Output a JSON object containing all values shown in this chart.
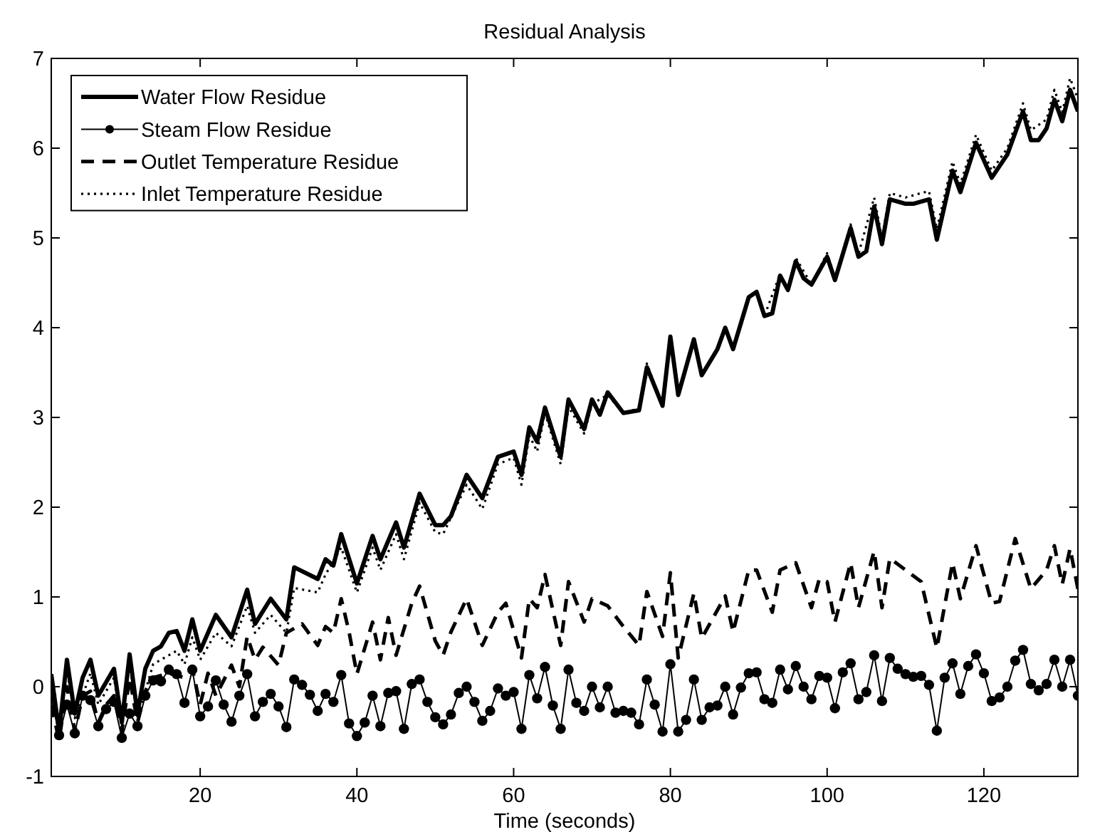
{
  "chart_data": {
    "type": "line",
    "title": "Residual Analysis",
    "xlabel": "Time (seconds)",
    "xlim": [
      1,
      132
    ],
    "xticks": [
      20,
      40,
      60,
      80,
      100,
      120
    ],
    "ylim": [
      -1,
      7
    ],
    "yticks": [
      -1,
      0,
      1,
      2,
      3,
      4,
      5,
      6,
      7
    ],
    "grid": false,
    "legend": "top left",
    "series": [
      {
        "name": "Water Flow Residue",
        "color": "#000000",
        "line_style": "solid",
        "marker": "none",
        "x": [
          1,
          2,
          3,
          4,
          5,
          6,
          7,
          8,
          9,
          10,
          11,
          12,
          13,
          14,
          15,
          16,
          17,
          18,
          19,
          20,
          22,
          24,
          26,
          27,
          29,
          31,
          32,
          35,
          36,
          37,
          38,
          40,
          42,
          43,
          45,
          46,
          48,
          50,
          51,
          52,
          54,
          56,
          58,
          60,
          61,
          62,
          63,
          64,
          66,
          67,
          69,
          70,
          71,
          72,
          74,
          76,
          77,
          79,
          80,
          81,
          83,
          84,
          86,
          87,
          88,
          90,
          91,
          92,
          93,
          94,
          95,
          96,
          97,
          98,
          100,
          101,
          103,
          104,
          105,
          106,
          107,
          108,
          110,
          111,
          113,
          114,
          116,
          117,
          119,
          121,
          122,
          123,
          125,
          126,
          127,
          128,
          129,
          130,
          131,
          132
        ],
        "values": [
          0.14,
          -0.5,
          0.3,
          -0.3,
          0.1,
          0.3,
          -0.1,
          0.05,
          0.2,
          -0.4,
          0.36,
          -0.3,
          0.2,
          0.4,
          0.45,
          0.6,
          0.62,
          0.4,
          0.75,
          0.4,
          0.8,
          0.55,
          1.08,
          0.7,
          0.98,
          0.75,
          1.33,
          1.2,
          1.42,
          1.35,
          1.7,
          1.15,
          1.68,
          1.42,
          1.83,
          1.55,
          2.15,
          1.8,
          1.8,
          1.9,
          2.36,
          2.1,
          2.56,
          2.62,
          2.36,
          2.89,
          2.73,
          3.11,
          2.56,
          3.2,
          2.87,
          3.2,
          3.03,
          3.28,
          3.05,
          3.08,
          3.56,
          3.13,
          3.9,
          3.25,
          3.87,
          3.47,
          3.76,
          4.0,
          3.76,
          4.34,
          4.4,
          4.13,
          4.16,
          4.58,
          4.42,
          4.74,
          4.55,
          4.48,
          4.79,
          4.53,
          5.11,
          4.79,
          4.85,
          5.35,
          4.93,
          5.43,
          5.38,
          5.38,
          5.43,
          4.98,
          5.75,
          5.51,
          6.06,
          5.67,
          5.8,
          5.93,
          6.41,
          6.09,
          6.09,
          6.22,
          6.54,
          6.3,
          6.65,
          6.41
        ]
      },
      {
        "name": "Steam Flow Residue",
        "color": "#000000",
        "line_style": "solid",
        "marker": "circle",
        "x": [
          1,
          2,
          3,
          4,
          5,
          6,
          7,
          8,
          9,
          10,
          11,
          12,
          13,
          14,
          15,
          16,
          17,
          18,
          19,
          20,
          21,
          22,
          23,
          24,
          25,
          26,
          27,
          28,
          29,
          30,
          31,
          32,
          33,
          34,
          35,
          36,
          37,
          38,
          39,
          40,
          41,
          42,
          43,
          44,
          45,
          46,
          47,
          48,
          49,
          50,
          51,
          52,
          53,
          54,
          55,
          56,
          57,
          58,
          59,
          60,
          61,
          62,
          63,
          64,
          65,
          66,
          67,
          68,
          69,
          70,
          71,
          72,
          73,
          74,
          75,
          76,
          77,
          78,
          79,
          80,
          81,
          82,
          83,
          84,
          85,
          86,
          87,
          88,
          89,
          90,
          91,
          92,
          93,
          94,
          95,
          96,
          97,
          98,
          99,
          100,
          101,
          102,
          103,
          104,
          105,
          106,
          107,
          108,
          109,
          110,
          111,
          112,
          113,
          114,
          115,
          116,
          117,
          118,
          119,
          120,
          121,
          122,
          123,
          124,
          125,
          126,
          127,
          128,
          129,
          130,
          131,
          132
        ],
        "values": [
          -0.1,
          -0.54,
          -0.2,
          -0.52,
          -0.1,
          -0.15,
          -0.44,
          -0.25,
          -0.17,
          -0.57,
          -0.3,
          -0.44,
          -0.1,
          0.07,
          0.06,
          0.19,
          0.14,
          -0.18,
          0.19,
          -0.33,
          -0.22,
          0.07,
          -0.2,
          -0.39,
          -0.1,
          0.14,
          -0.33,
          -0.17,
          -0.08,
          -0.22,
          -0.45,
          0.08,
          0.02,
          -0.09,
          -0.27,
          -0.08,
          -0.17,
          0.13,
          -0.41,
          -0.55,
          -0.4,
          -0.1,
          -0.44,
          -0.07,
          -0.05,
          -0.47,
          0.03,
          0.08,
          -0.17,
          -0.34,
          -0.42,
          -0.31,
          -0.07,
          0.0,
          -0.17,
          -0.38,
          -0.27,
          -0.02,
          -0.1,
          -0.06,
          -0.47,
          0.13,
          -0.13,
          0.22,
          -0.21,
          -0.47,
          0.19,
          -0.18,
          -0.27,
          0.0,
          -0.23,
          0.0,
          -0.29,
          -0.27,
          -0.29,
          -0.42,
          0.08,
          -0.2,
          -0.5,
          0.25,
          -0.5,
          -0.37,
          0.08,
          -0.37,
          -0.23,
          -0.21,
          0.0,
          -0.31,
          -0.01,
          0.15,
          0.16,
          -0.14,
          -0.18,
          0.19,
          -0.03,
          0.23,
          0.0,
          -0.14,
          0.12,
          0.1,
          -0.24,
          0.16,
          0.26,
          -0.14,
          -0.06,
          0.35,
          -0.16,
          0.32,
          0.2,
          0.14,
          0.11,
          0.12,
          0.02,
          -0.49,
          0.1,
          0.26,
          -0.08,
          0.23,
          0.36,
          0.15,
          -0.16,
          -0.12,
          0.0,
          0.29,
          0.41,
          0.03,
          -0.04,
          0.03,
          0.3,
          0.0,
          0.3,
          -0.1
        ]
      },
      {
        "name": "Outlet Temperature Residue",
        "color": "#000000",
        "line_style": "dashed",
        "marker": "none",
        "x": [
          1,
          2,
          3,
          4,
          5,
          6,
          7,
          8,
          9,
          10,
          11,
          12,
          13,
          14,
          16,
          18,
          19,
          20,
          21,
          22,
          24,
          25,
          26,
          27,
          28,
          30,
          31,
          33,
          35,
          36,
          37,
          38,
          39,
          40,
          42,
          43,
          44,
          45,
          47,
          48,
          50,
          51,
          52,
          54,
          56,
          58,
          59,
          61,
          62,
          63,
          64,
          66,
          67,
          69,
          70,
          72,
          74,
          76,
          77,
          79,
          80,
          81,
          83,
          84,
          87,
          88,
          90,
          91,
          93,
          94,
          96,
          98,
          99,
          100,
          101,
          103,
          104,
          106,
          107,
          108,
          112,
          114,
          116,
          117,
          119,
          121,
          122,
          124,
          126,
          128,
          129,
          130,
          131,
          132
        ],
        "values": [
          -0.2,
          -0.6,
          0.0,
          -0.5,
          -0.1,
          -0.05,
          -0.4,
          -0.2,
          -0.1,
          -0.5,
          0.1,
          -0.4,
          -0.05,
          0.1,
          0.15,
          0.1,
          0.2,
          -0.2,
          0.15,
          -0.1,
          0.24,
          0.0,
          0.56,
          0.3,
          0.44,
          0.24,
          0.6,
          0.7,
          0.46,
          0.67,
          0.6,
          0.98,
          0.61,
          0.14,
          0.72,
          0.3,
          0.77,
          0.35,
          0.93,
          1.12,
          0.51,
          0.35,
          0.61,
          0.98,
          0.46,
          0.83,
          0.93,
          0.32,
          0.98,
          0.88,
          1.25,
          0.46,
          1.17,
          0.72,
          0.98,
          0.9,
          0.67,
          0.46,
          1.06,
          0.56,
          1.27,
          0.32,
          1.04,
          0.54,
          1.01,
          0.61,
          1.3,
          1.3,
          0.83,
          1.3,
          1.38,
          0.88,
          1.2,
          1.17,
          0.72,
          1.38,
          0.88,
          1.51,
          0.88,
          1.43,
          1.17,
          0.43,
          1.38,
          0.98,
          1.57,
          0.93,
          0.95,
          1.65,
          1.09,
          1.3,
          1.57,
          1.14,
          1.54,
          1.09
        ]
      },
      {
        "name": "Inlet Temperature Residue",
        "color": "#000000",
        "line_style": "dotted",
        "marker": "none",
        "x": [
          1,
          2,
          3,
          4,
          6,
          7,
          9,
          10,
          11,
          12,
          14,
          16,
          17,
          18,
          19,
          20,
          22,
          24,
          26,
          27,
          29,
          31,
          32,
          35,
          36,
          38,
          40,
          42,
          43,
          45,
          46,
          48,
          50,
          51,
          54,
          56,
          58,
          60,
          61,
          62,
          63,
          64,
          66,
          67,
          69,
          70,
          72,
          74,
          76,
          77,
          79,
          80,
          81,
          83,
          84,
          86,
          87,
          88,
          90,
          91,
          92,
          94,
          95,
          96,
          98,
          100,
          101,
          103,
          104,
          106,
          107,
          108,
          110,
          112,
          113,
          114,
          116,
          117,
          119,
          121,
          123,
          125,
          126,
          128,
          129,
          130,
          131,
          132
        ],
        "values": [
          0.0,
          -0.4,
          0.2,
          -0.35,
          0.15,
          -0.2,
          0.1,
          -0.45,
          0.25,
          -0.35,
          0.25,
          0.35,
          0.4,
          0.25,
          0.55,
          0.3,
          0.6,
          0.45,
          0.9,
          0.6,
          0.8,
          0.6,
          1.1,
          1.05,
          1.25,
          1.55,
          1.05,
          1.55,
          1.3,
          1.7,
          1.42,
          2.05,
          1.72,
          1.7,
          2.25,
          1.98,
          2.48,
          2.55,
          2.25,
          2.8,
          2.62,
          3.05,
          2.48,
          3.12,
          2.82,
          3.15,
          3.25,
          3.05,
          3.1,
          3.6,
          3.13,
          3.9,
          3.25,
          3.87,
          3.47,
          3.76,
          4.0,
          3.76,
          4.34,
          4.4,
          4.13,
          4.6,
          4.42,
          4.78,
          4.48,
          4.83,
          4.55,
          5.15,
          4.82,
          5.45,
          5.0,
          5.5,
          5.45,
          5.5,
          5.52,
          5.1,
          5.85,
          5.6,
          6.15,
          5.75,
          6.0,
          6.5,
          6.2,
          6.32,
          6.65,
          6.4,
          6.78,
          6.55
        ]
      }
    ]
  }
}
